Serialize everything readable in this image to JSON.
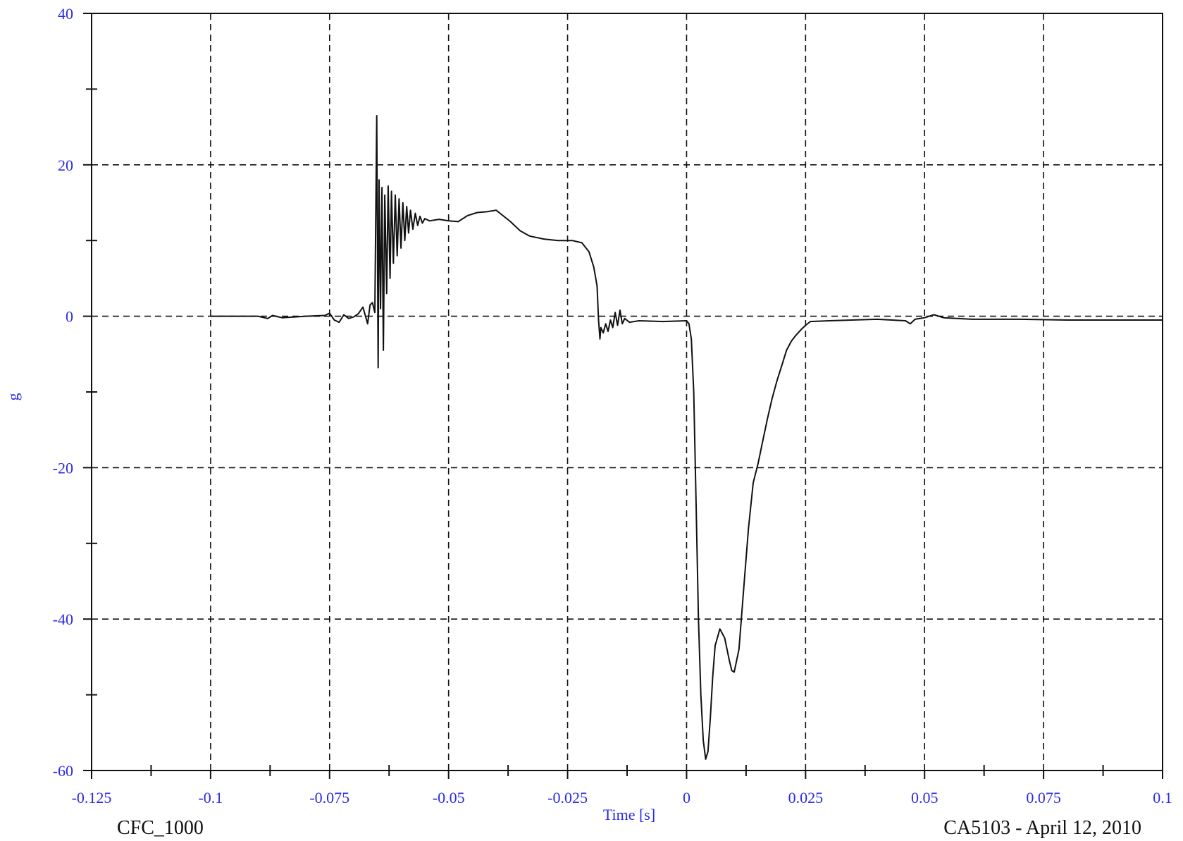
{
  "chart_data": {
    "type": "line",
    "xlabel": "Time [s]",
    "ylabel": "g",
    "xlim": [
      -0.125,
      0.1
    ],
    "ylim": [
      -60,
      40
    ],
    "x_ticks": [
      -0.125,
      -0.1,
      -0.075,
      -0.05,
      -0.025,
      0,
      0.025,
      0.05,
      0.075,
      0.1
    ],
    "x_tick_labels": [
      "-0.125",
      "-0.1",
      "-0.075",
      "-0.05",
      "-0.025",
      "0",
      "0.025",
      "0.05",
      "0.075",
      "0.1"
    ],
    "y_ticks": [
      40,
      20,
      0,
      -20,
      -40,
      -60
    ],
    "y_tick_labels": [
      "40",
      "20",
      "0",
      "-20",
      "-40",
      "-60"
    ],
    "grid": true,
    "footer_left": "CFC_1000",
    "footer_right": "CA5103 - April 12, 2010",
    "colors": {
      "line": "#111111",
      "grid": "#111111",
      "labels": "#2a2ae6"
    },
    "series": [
      {
        "points": [
          [
            -0.1,
            0
          ],
          [
            -0.09,
            0
          ],
          [
            -0.088,
            -0.3
          ],
          [
            -0.087,
            0.1
          ],
          [
            -0.085,
            -0.2
          ],
          [
            -0.08,
            0
          ],
          [
            -0.076,
            0.1
          ],
          [
            -0.075,
            0.4
          ],
          [
            -0.074,
            -0.5
          ],
          [
            -0.073,
            -0.8
          ],
          [
            -0.072,
            0.2
          ],
          [
            -0.071,
            -0.3
          ],
          [
            -0.07,
            -0.1
          ],
          [
            -0.069,
            0.3
          ],
          [
            -0.068,
            1.2
          ],
          [
            -0.067,
            -1.0
          ],
          [
            -0.0665,
            1.5
          ],
          [
            -0.066,
            1.8
          ],
          [
            -0.0655,
            0.5
          ],
          [
            -0.0651,
            26.5
          ],
          [
            -0.0648,
            -6.8
          ],
          [
            -0.0646,
            18
          ],
          [
            -0.0643,
            1
          ],
          [
            -0.064,
            17
          ],
          [
            -0.0637,
            -4.5
          ],
          [
            -0.0634,
            16
          ],
          [
            -0.063,
            3
          ],
          [
            -0.0627,
            17.2
          ],
          [
            -0.0623,
            5
          ],
          [
            -0.062,
            16.5
          ],
          [
            -0.0616,
            7
          ],
          [
            -0.0612,
            16
          ],
          [
            -0.0608,
            8
          ],
          [
            -0.0604,
            15.5
          ],
          [
            -0.06,
            9
          ],
          [
            -0.0596,
            15
          ],
          [
            -0.0592,
            10
          ],
          [
            -0.0588,
            14.5
          ],
          [
            -0.0584,
            11
          ],
          [
            -0.058,
            14
          ],
          [
            -0.0575,
            11.5
          ],
          [
            -0.057,
            13.6
          ],
          [
            -0.0565,
            12
          ],
          [
            -0.056,
            13.2
          ],
          [
            -0.0555,
            12.3
          ],
          [
            -0.055,
            12.9
          ],
          [
            -0.054,
            12.6
          ],
          [
            -0.052,
            12.8
          ],
          [
            -0.05,
            12.6
          ],
          [
            -0.048,
            12.5
          ],
          [
            -0.046,
            13.3
          ],
          [
            -0.044,
            13.7
          ],
          [
            -0.042,
            13.8
          ],
          [
            -0.04,
            14
          ],
          [
            -0.039,
            13.5
          ],
          [
            -0.037,
            12.5
          ],
          [
            -0.035,
            11.3
          ],
          [
            -0.033,
            10.6
          ],
          [
            -0.03,
            10.2
          ],
          [
            -0.027,
            10
          ],
          [
            -0.024,
            10
          ],
          [
            -0.022,
            9.7
          ],
          [
            -0.0205,
            8.5
          ],
          [
            -0.0195,
            6.5
          ],
          [
            -0.0188,
            4
          ],
          [
            -0.0185,
            -0.5
          ],
          [
            -0.0182,
            -3
          ],
          [
            -0.018,
            -1.5
          ],
          [
            -0.0175,
            -2.2
          ],
          [
            -0.017,
            -1
          ],
          [
            -0.0165,
            -2
          ],
          [
            -0.016,
            -0.5
          ],
          [
            -0.0155,
            -1.5
          ],
          [
            -0.015,
            0.5
          ],
          [
            -0.0145,
            -1.2
          ],
          [
            -0.014,
            0.8
          ],
          [
            -0.0135,
            -1
          ],
          [
            -0.013,
            -0.3
          ],
          [
            -0.012,
            -0.8
          ],
          [
            -0.01,
            -0.6
          ],
          [
            -0.005,
            -0.7
          ],
          [
            0,
            -0.6
          ],
          [
            0.0005,
            -1
          ],
          [
            0.001,
            -3
          ],
          [
            0.0015,
            -10
          ],
          [
            0.002,
            -25
          ],
          [
            0.0025,
            -40
          ],
          [
            0.003,
            -50
          ],
          [
            0.0035,
            -56
          ],
          [
            0.004,
            -58.5
          ],
          [
            0.0045,
            -57.5
          ],
          [
            0.005,
            -53
          ],
          [
            0.0055,
            -47.5
          ],
          [
            0.006,
            -43.5
          ],
          [
            0.007,
            -41.3
          ],
          [
            0.008,
            -42.5
          ],
          [
            0.009,
            -45.5
          ],
          [
            0.0095,
            -46.8
          ],
          [
            0.01,
            -47
          ],
          [
            0.011,
            -44
          ],
          [
            0.012,
            -36
          ],
          [
            0.013,
            -28
          ],
          [
            0.014,
            -22
          ],
          [
            0.015,
            -19.5
          ],
          [
            0.016,
            -16.5
          ],
          [
            0.017,
            -13.5
          ],
          [
            0.018,
            -10.8
          ],
          [
            0.019,
            -8.5
          ],
          [
            0.02,
            -6.5
          ],
          [
            0.021,
            -4.5
          ],
          [
            0.022,
            -3.3
          ],
          [
            0.023,
            -2.5
          ],
          [
            0.024,
            -1.8
          ],
          [
            0.025,
            -1.2
          ],
          [
            0.026,
            -0.7
          ],
          [
            0.03,
            -0.6
          ],
          [
            0.04,
            -0.4
          ],
          [
            0.046,
            -0.6
          ],
          [
            0.047,
            -1
          ],
          [
            0.048,
            -0.4
          ],
          [
            0.05,
            -0.2
          ],
          [
            0.052,
            0.2
          ],
          [
            0.054,
            -0.2
          ],
          [
            0.06,
            -0.4
          ],
          [
            0.07,
            -0.4
          ],
          [
            0.08,
            -0.5
          ],
          [
            0.09,
            -0.5
          ],
          [
            0.1,
            -0.5
          ]
        ]
      }
    ]
  }
}
